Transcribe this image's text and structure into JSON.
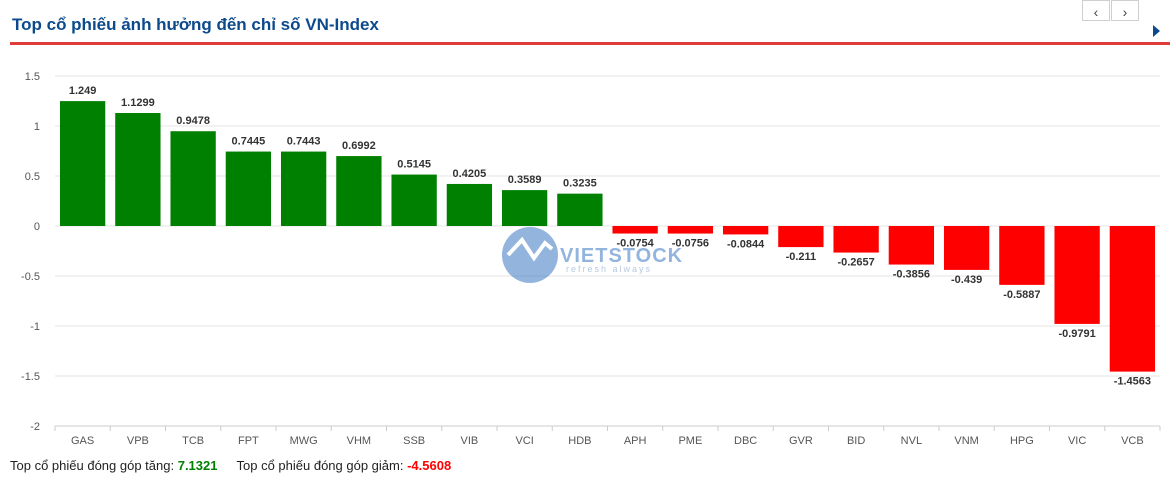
{
  "header": {
    "title": "Top cổ phiếu ảnh hưởng đến chỉ số VN-Index",
    "prev_label": "‹",
    "next_label": "›",
    "play_icon": "play-icon"
  },
  "watermark": {
    "brand": "VIETSTOCK",
    "tagline": "refresh always"
  },
  "colors": {
    "positive": "#008000",
    "negative": "#ff0000",
    "title": "#0c4a8c",
    "rule": "#e03c3c"
  },
  "chart_data": {
    "type": "bar",
    "categories": [
      "GAS",
      "VPB",
      "TCB",
      "FPT",
      "MWG",
      "VHM",
      "SSB",
      "VIB",
      "VCI",
      "HDB",
      "APH",
      "PME",
      "DBC",
      "GVR",
      "BID",
      "NVL",
      "VNM",
      "HPG",
      "VIC",
      "VCB"
    ],
    "values": [
      1.249,
      1.1299,
      0.9478,
      0.7445,
      0.7443,
      0.6992,
      0.5145,
      0.4205,
      0.3589,
      0.3235,
      -0.0754,
      -0.0756,
      -0.0844,
      -0.211,
      -0.2657,
      -0.3856,
      -0.439,
      -0.5887,
      -0.9791,
      -1.4563
    ],
    "data_labels": [
      "1.249",
      "1.1299",
      "0.9478",
      "0.7445",
      "0.7443",
      "0.6992",
      "0.5145",
      "0.4205",
      "0.3589",
      "0.3235",
      "-0.0754",
      "-0.0756",
      "-0.0844",
      "-0.211",
      "-0.2657",
      "-0.3856",
      "-0.439",
      "-0.5887",
      "-0.9791",
      "-1.4563"
    ],
    "yticks": [
      1.5,
      1,
      0.5,
      0,
      -0.5,
      -1,
      -1.5,
      -2
    ],
    "ytick_labels": [
      "1.5",
      "1",
      "0.5",
      "0",
      "-0.5",
      "-1",
      "-1.5",
      "-2"
    ],
    "ylim": [
      -2,
      1.5
    ],
    "grid": true,
    "legend": "none"
  },
  "footer": {
    "up_label": "Top cổ phiếu đóng góp tăng:",
    "up_value": "7.1321",
    "down_label": "Top cổ phiếu đóng góp giảm:",
    "down_value": "-4.5608"
  }
}
